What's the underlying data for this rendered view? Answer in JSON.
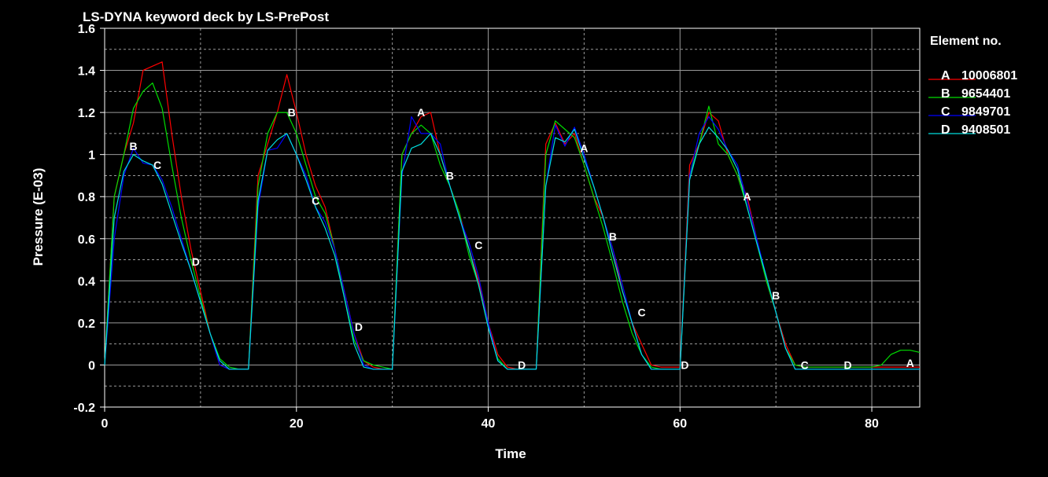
{
  "chart_data": {
    "type": "line",
    "title": "LS-DYNA keyword deck by LS-PrePost",
    "xlabel": "Time",
    "ylabel": "Pressure (E-03)",
    "xlim": [
      0,
      85
    ],
    "ylim": [
      -0.2,
      1.6
    ],
    "xticks": [
      0,
      20,
      40,
      60,
      80
    ],
    "xtick_labels": [
      "0",
      "20",
      "40",
      "60",
      "80"
    ],
    "yticks": [
      -0.2,
      0,
      0.2,
      0.4,
      0.6,
      0.8,
      1.0,
      1.2,
      1.4,
      1.6
    ],
    "ytick_labels": [
      "-0.2",
      "0",
      "0.2",
      "0.4",
      "0.6",
      "0.8",
      "1",
      "1.2",
      "1.4",
      "1.6"
    ],
    "grid": true,
    "legend_title": "Element no.",
    "legend_position": "right",
    "series": [
      {
        "name": "10006801",
        "letter": "A",
        "color": "#ff0000",
        "x": [
          0,
          1,
          2,
          3,
          4,
          5,
          6,
          7,
          8,
          9,
          10,
          11,
          12,
          13,
          14,
          15,
          16,
          17,
          18,
          19,
          20,
          21,
          22,
          23,
          24,
          25,
          26,
          27,
          28,
          29,
          30,
          31,
          32,
          33,
          34,
          35,
          36,
          37,
          38,
          39,
          40,
          41,
          42,
          43,
          44,
          45,
          46,
          47,
          48,
          49,
          50,
          51,
          52,
          53,
          54,
          55,
          56,
          57,
          58,
          59,
          60,
          61,
          62,
          63,
          64,
          65,
          66,
          67,
          68,
          69,
          70,
          71,
          72,
          73,
          74,
          75,
          76,
          77,
          78,
          79,
          80,
          81,
          82,
          83,
          84,
          85
        ],
        "y": [
          0,
          0.8,
          1.0,
          1.15,
          1.4,
          1.42,
          1.44,
          1.1,
          0.8,
          0.55,
          0.35,
          0.15,
          0,
          -0.02,
          -0.02,
          -0.02,
          0.9,
          1.05,
          1.2,
          1.38,
          1.2,
          1.0,
          0.85,
          0.75,
          0.55,
          0.35,
          0.15,
          0.02,
          -0.01,
          -0.02,
          -0.02,
          1.0,
          1.1,
          1.18,
          1.2,
          1.0,
          0.85,
          0.72,
          0.55,
          0.4,
          0.2,
          0.05,
          -0.01,
          -0.02,
          -0.02,
          -0.02,
          1.05,
          1.15,
          1.05,
          1.1,
          0.95,
          0.8,
          0.7,
          0.55,
          0.35,
          0.2,
          0.1,
          0.0,
          -0.01,
          -0.01,
          -0.01,
          0.95,
          1.05,
          1.2,
          1.16,
          1.0,
          0.9,
          0.8,
          0.6,
          0.4,
          0.25,
          0.1,
          0.0,
          -0.01,
          -0.01,
          -0.01,
          -0.01,
          -0.01,
          -0.01,
          -0.01,
          -0.01,
          -0.01,
          -0.01,
          -0.01,
          -0.01,
          -0.01
        ],
        "markers": [
          [
            33,
            1.2
          ],
          [
            50,
            1.03
          ],
          [
            67,
            0.8
          ],
          [
            84,
            0.01
          ]
        ]
      },
      {
        "name": "9654401",
        "letter": "B",
        "color": "#00dd00",
        "x": [
          0,
          1,
          2,
          3,
          4,
          5,
          6,
          7,
          8,
          9,
          10,
          11,
          12,
          13,
          14,
          15,
          16,
          17,
          18,
          19,
          20,
          21,
          22,
          23,
          24,
          25,
          26,
          27,
          28,
          29,
          30,
          31,
          32,
          33,
          34,
          35,
          36,
          37,
          38,
          39,
          40,
          41,
          42,
          43,
          44,
          45,
          46,
          47,
          48,
          49,
          50,
          51,
          52,
          53,
          54,
          55,
          56,
          57,
          58,
          59,
          60,
          61,
          62,
          63,
          64,
          65,
          66,
          67,
          68,
          69,
          70,
          71,
          72,
          73,
          74,
          75,
          76,
          77,
          78,
          79,
          80,
          81,
          82,
          83,
          84,
          85
        ],
        "y": [
          0,
          0.8,
          1.0,
          1.22,
          1.3,
          1.34,
          1.22,
          0.95,
          0.7,
          0.5,
          0.32,
          0.15,
          0.03,
          -0.01,
          -0.02,
          -0.02,
          0.85,
          1.1,
          1.2,
          1.2,
          1.1,
          0.95,
          0.8,
          0.72,
          0.55,
          0.32,
          0.12,
          0.02,
          0.0,
          -0.01,
          -0.02,
          1.0,
          1.1,
          1.14,
          1.1,
          0.95,
          0.85,
          0.72,
          0.52,
          0.38,
          0.18,
          0.03,
          -0.02,
          -0.02,
          -0.02,
          -0.02,
          1.0,
          1.16,
          1.12,
          1.08,
          0.95,
          0.8,
          0.65,
          0.48,
          0.3,
          0.15,
          0.05,
          -0.01,
          -0.02,
          -0.02,
          -0.02,
          0.9,
          1.05,
          1.23,
          1.05,
          1.0,
          0.9,
          0.75,
          0.58,
          0.4,
          0.25,
          0.08,
          0.0,
          -0.01,
          -0.01,
          -0.01,
          -0.01,
          -0.01,
          -0.01,
          -0.01,
          -0.01,
          0.0,
          0.05,
          0.07,
          0.07,
          0.06
        ],
        "markers": [
          [
            3,
            1.04
          ],
          [
            19.5,
            1.2
          ],
          [
            36,
            0.9
          ],
          [
            53,
            0.61
          ],
          [
            70,
            0.33
          ]
        ]
      },
      {
        "name": "9849701",
        "letter": "C",
        "color": "#0000ff",
        "x": [
          0,
          1,
          2,
          3,
          4,
          5,
          6,
          7,
          8,
          9,
          10,
          11,
          12,
          13,
          14,
          15,
          16,
          17,
          18,
          19,
          20,
          21,
          22,
          23,
          24,
          25,
          26,
          27,
          28,
          29,
          30,
          31,
          32,
          33,
          34,
          35,
          36,
          37,
          38,
          39,
          40,
          41,
          42,
          43,
          44,
          45,
          46,
          47,
          48,
          49,
          50,
          51,
          52,
          53,
          54,
          55,
          56,
          57,
          58,
          59,
          60,
          61,
          62,
          63,
          64,
          65,
          66,
          67,
          68,
          69,
          70,
          71,
          72,
          73,
          74,
          75,
          76,
          77,
          78,
          79,
          80,
          81,
          82,
          83,
          84,
          85
        ],
        "y": [
          0,
          0.6,
          0.9,
          1.03,
          0.96,
          0.95,
          0.88,
          0.75,
          0.6,
          0.45,
          0.3,
          0.15,
          0.0,
          -0.02,
          -0.02,
          -0.02,
          0.75,
          1.02,
          1.03,
          1.1,
          1.0,
          0.9,
          0.75,
          0.68,
          0.55,
          0.35,
          0.15,
          0.0,
          -0.02,
          -0.02,
          -0.02,
          0.9,
          1.18,
          1.1,
          1.1,
          1.05,
          0.85,
          0.7,
          0.58,
          0.42,
          0.2,
          0.02,
          -0.02,
          -0.02,
          -0.02,
          -0.02,
          0.85,
          1.14,
          1.04,
          1.13,
          1.0,
          0.85,
          0.7,
          0.55,
          0.38,
          0.2,
          0.05,
          -0.02,
          -0.02,
          -0.02,
          -0.02,
          0.9,
          1.1,
          1.18,
          1.12,
          1.02,
          0.95,
          0.78,
          0.6,
          0.42,
          0.25,
          0.08,
          -0.02,
          -0.02,
          -0.02,
          -0.02,
          -0.02,
          -0.02,
          -0.02,
          -0.02,
          -0.02,
          -0.02,
          -0.02,
          -0.02,
          -0.02,
          -0.02
        ],
        "markers": [
          [
            5.5,
            0.95
          ],
          [
            22,
            0.78
          ],
          [
            39,
            0.57
          ],
          [
            56,
            0.25
          ],
          [
            73,
            0.0
          ]
        ]
      },
      {
        "name": "9408501",
        "letter": "D",
        "color": "#00dddd",
        "x": [
          0,
          1,
          2,
          3,
          4,
          5,
          6,
          7,
          8,
          9,
          10,
          11,
          12,
          13,
          14,
          15,
          16,
          17,
          18,
          19,
          20,
          21,
          22,
          23,
          24,
          25,
          26,
          27,
          28,
          29,
          30,
          31,
          32,
          33,
          34,
          35,
          36,
          37,
          38,
          39,
          40,
          41,
          42,
          43,
          44,
          45,
          46,
          47,
          48,
          49,
          50,
          51,
          52,
          53,
          54,
          55,
          56,
          57,
          58,
          59,
          60,
          61,
          62,
          63,
          64,
          65,
          66,
          67,
          68,
          69,
          70,
          71,
          72,
          73,
          74,
          75,
          76,
          77,
          78,
          79,
          80,
          81,
          82,
          83,
          84,
          85
        ],
        "y": [
          0,
          0.7,
          0.92,
          1.0,
          0.97,
          0.95,
          0.86,
          0.72,
          0.58,
          0.45,
          0.3,
          0.15,
          0.02,
          -0.02,
          -0.02,
          -0.02,
          0.78,
          1.02,
          1.07,
          1.1,
          1.0,
          0.88,
          0.75,
          0.65,
          0.52,
          0.32,
          0.1,
          -0.01,
          -0.02,
          -0.02,
          -0.02,
          0.92,
          1.03,
          1.05,
          1.1,
          1.0,
          0.85,
          0.7,
          0.55,
          0.38,
          0.18,
          0.02,
          -0.02,
          -0.02,
          -0.02,
          -0.02,
          0.85,
          1.08,
          1.06,
          1.12,
          0.98,
          0.85,
          0.7,
          0.52,
          0.35,
          0.2,
          0.05,
          -0.02,
          -0.02,
          -0.02,
          -0.02,
          0.88,
          1.05,
          1.13,
          1.08,
          1.02,
          0.93,
          0.75,
          0.58,
          0.42,
          0.25,
          0.08,
          -0.02,
          -0.02,
          -0.02,
          -0.02,
          -0.02,
          -0.02,
          -0.02,
          -0.02,
          -0.02,
          -0.02,
          -0.02,
          -0.02,
          -0.02,
          -0.02
        ],
        "markers": [
          [
            9.5,
            0.49
          ],
          [
            26.5,
            0.18
          ],
          [
            43.5,
            0.0
          ],
          [
            60.5,
            0.0
          ],
          [
            77.5,
            0.0
          ]
        ]
      }
    ]
  }
}
